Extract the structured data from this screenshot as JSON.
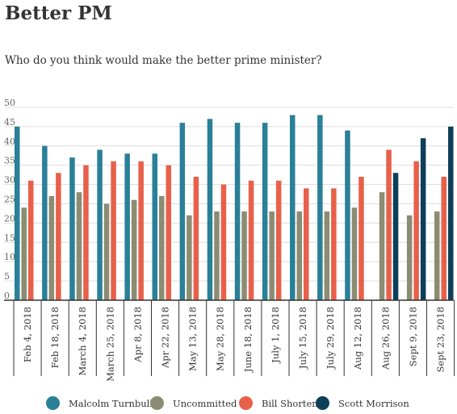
{
  "header": {
    "title": "Better PM",
    "subtitle": "Who do you think would make the better prime minister?"
  },
  "colors": {
    "Malcolm Turnbull": "#2a8098",
    "Uncommitted": "#8c8c72",
    "Bill Shorten": "#e8604a",
    "Scott Morrison": "#0d3f5a",
    "gridline": "#dddddd",
    "axis": "#333333"
  },
  "chart_data": {
    "type": "bar",
    "title": "Better PM",
    "subtitle": "Who do you think would make the better prime minister?",
    "xlabel": "",
    "ylabel": "",
    "ylim": [
      0,
      50
    ],
    "yticks": [
      0,
      5,
      10,
      15,
      20,
      25,
      30,
      35,
      40,
      45,
      50
    ],
    "grid": true,
    "legend_position": "bottom",
    "categories": [
      "Feb 4, 2018",
      "Feb 18, 2018",
      "March 4, 2018",
      "March 25, 2018",
      "Apr 8, 2018",
      "Apr 22, 2018",
      "May 13, 2018",
      "May 28, 2018",
      "June 18, 2018",
      "July 1, 2018",
      "July 15, 2018",
      "July 29, 2018",
      "Aug 12, 2018",
      "Aug 26, 2018",
      "Sept 9, 2018",
      "Sept 23, 2018"
    ],
    "series": [
      {
        "name": "Malcolm Turnbull",
        "values": [
          45,
          40,
          37,
          39,
          38,
          38,
          46,
          47,
          46,
          46,
          48,
          48,
          44,
          null,
          null,
          null
        ]
      },
      {
        "name": "Uncommitted",
        "values": [
          24,
          27,
          28,
          25,
          26,
          27,
          22,
          23,
          23,
          23,
          23,
          23,
          24,
          28,
          22,
          23
        ]
      },
      {
        "name": "Bill Shorten",
        "values": [
          31,
          33,
          35,
          36,
          36,
          35,
          32,
          30,
          31,
          31,
          29,
          29,
          32,
          39,
          36,
          32
        ]
      },
      {
        "name": "Scott Morrison",
        "values": [
          null,
          null,
          null,
          null,
          null,
          null,
          null,
          null,
          null,
          null,
          null,
          null,
          null,
          33,
          42,
          45
        ]
      }
    ]
  }
}
